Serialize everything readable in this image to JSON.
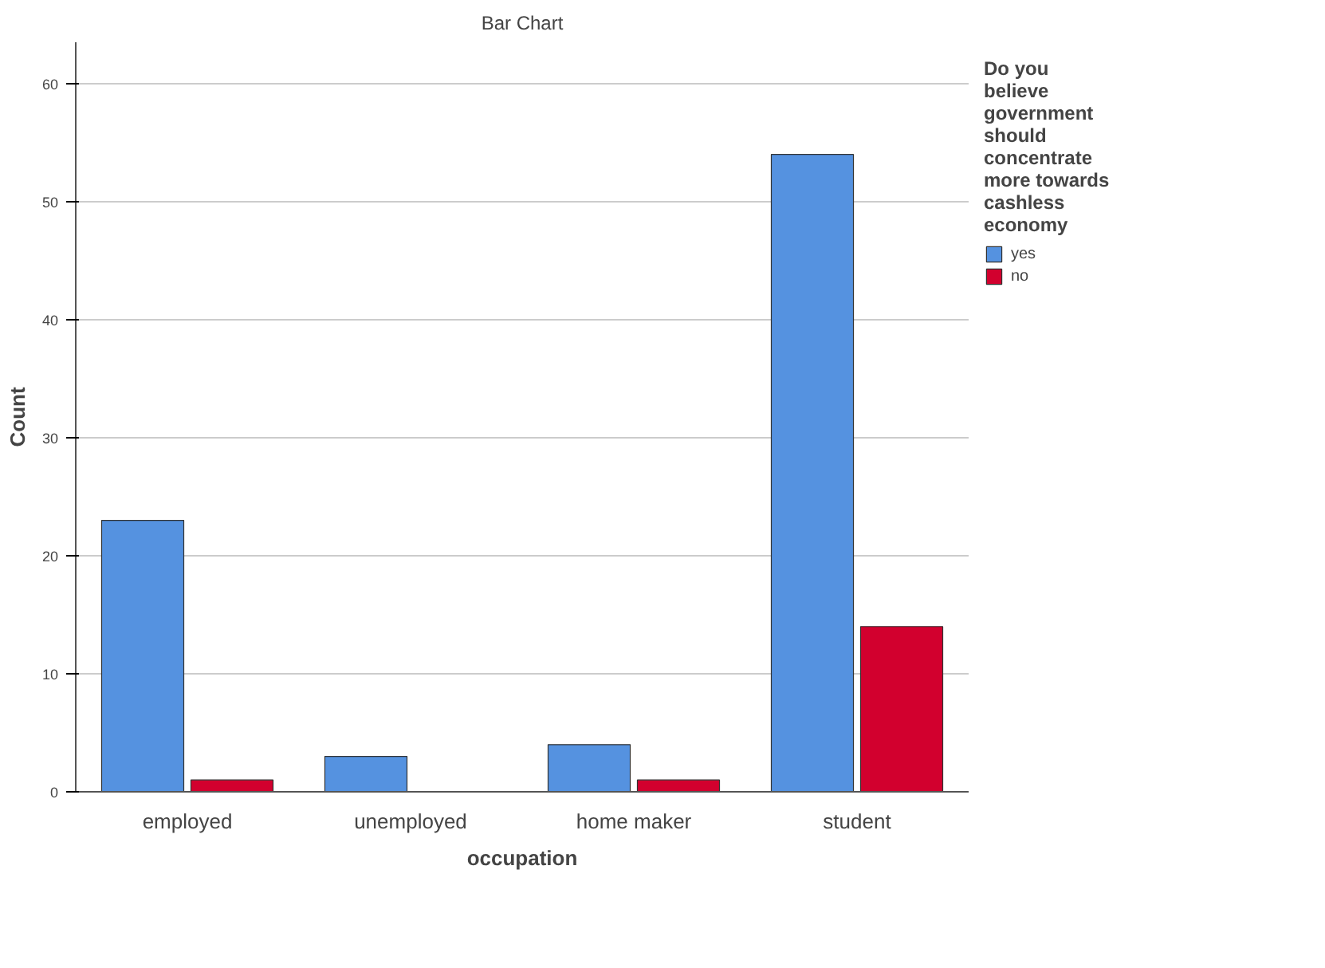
{
  "chart_data": {
    "type": "bar",
    "title": "Bar Chart",
    "xlabel": "occupation",
    "ylabel": "Count",
    "legend_title": "Do you believe government should concentrate more towards cashless economy",
    "categories": [
      "employed",
      "unemployed",
      "home maker",
      "student"
    ],
    "series": [
      {
        "name": "yes",
        "color": "#5592e0",
        "values": [
          23,
          3,
          4,
          54
        ]
      },
      {
        "name": "no",
        "color": "#d2002e",
        "values": [
          1,
          null,
          1,
          14
        ]
      }
    ],
    "ylim": [
      0,
      63.5
    ],
    "yticks": [
      0,
      10,
      20,
      30,
      40,
      50,
      60
    ],
    "grid": "y",
    "legend": "top right"
  }
}
